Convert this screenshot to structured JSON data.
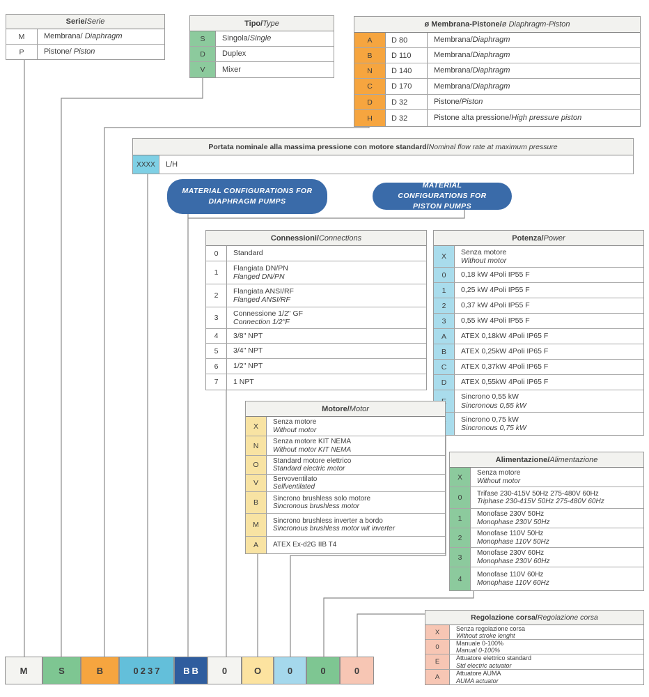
{
  "colors": {
    "green": "#8cca9d",
    "code_green": "#7ec692",
    "orange": "#f6a53f",
    "cyan": "#7fd0e5",
    "code_cyan": "#63bfda",
    "lightblue": "#a9dcec",
    "yellow": "#f8e3a3",
    "salmon": "#f7c6b4",
    "pill_blue": "#3a6ba9",
    "navy": "#2f5d9e",
    "white_cell": "#ffffff",
    "code_white": "#f4f4f1",
    "header_bg": "#f2f2ef",
    "line": "#8a8a8a",
    "text": "#3d3d3d"
  },
  "pills": [
    {
      "text": "MATERIAL CONFIGURATIONS FOR DIAPHRAGM PUMPS"
    },
    {
      "text": "MATERIAL CONFIGURATIONS FOR PISTON PUMPS"
    }
  ],
  "tables": [
    {
      "id": "serie",
      "title_it": "Serie/",
      "title_en": "Serie",
      "key_color": "white_cell",
      "rows": [
        {
          "k": "M",
          "a": "Membrana/",
          "ai": " Diaphragm"
        },
        {
          "k": "P",
          "a": "Pistone/",
          "ai": " Piston"
        }
      ]
    },
    {
      "id": "tipo",
      "title_it": "Tipo/",
      "title_en": "Type",
      "key_color": "green",
      "rows": [
        {
          "k": "S",
          "a": "Singola/",
          "ai": "Single"
        },
        {
          "k": "D",
          "a": "Duplex"
        },
        {
          "k": "V",
          "a": "Mixer"
        }
      ]
    },
    {
      "id": "diam",
      "title_it": "ø Membrana-Pistone/",
      "title_en": "ø Diaphragm-Piston",
      "key_color": "orange",
      "rows": [
        {
          "k": "A",
          "m": "D 80",
          "a": "Membrana/",
          "ai": "Diaphragm"
        },
        {
          "k": "B",
          "m": "D 110",
          "a": "Membrana/",
          "ai": "Diaphragm"
        },
        {
          "k": "N",
          "m": "D 140",
          "a": "Membrana/",
          "ai": "Diaphragm"
        },
        {
          "k": "C",
          "m": "D 170",
          "a": "Membrana/",
          "ai": "Diaphragm"
        },
        {
          "k": "D",
          "m": "D 32",
          "a": "Pistone/",
          "ai": "Piston"
        },
        {
          "k": "H",
          "m": "D 32",
          "a": "Pistone alta pressione/",
          "ai": "High pressure piston"
        }
      ]
    },
    {
      "id": "portata",
      "title_it": "Portata nominale alla massima pressione con motore standard/",
      "title_en": " Nominal flow rate at maximum pressure",
      "key_color": "cyan",
      "rows": [
        {
          "k": "XXXX",
          "a": "L/H"
        }
      ]
    },
    {
      "id": "connessioni",
      "title_it": "Connessioni/",
      "title_en": "Connections",
      "key_color": "white_cell",
      "rows": [
        {
          "k": "0",
          "a": "Standard"
        },
        {
          "k": "1",
          "a": "Flangiata DN/PN",
          "b": "Flanged DN/PN"
        },
        {
          "k": "2",
          "a": "Flangiata ANSI/RF",
          "b": "Flanged ANSI/RF"
        },
        {
          "k": "3",
          "a": "Connessione 1/2\" GF",
          "b": "Connection 1/2\"F"
        },
        {
          "k": "4",
          "a": "3/8\" NPT"
        },
        {
          "k": "5",
          "a": "3/4\" NPT"
        },
        {
          "k": "6",
          "a": "1/2\" NPT"
        },
        {
          "k": "7",
          "a": "1 NPT"
        }
      ]
    },
    {
      "id": "potenza",
      "title_it": "Potenza/",
      "title_en": "Power",
      "key_color": "lightblue",
      "rows": [
        {
          "k": "X",
          "a": "Senza motore",
          "b": "Without motor"
        },
        {
          "k": "0",
          "a": "0,18 kW 4Poli IP55 F"
        },
        {
          "k": "1",
          "a": "0,25 kW 4Poli IP55 F"
        },
        {
          "k": "2",
          "a": "0,37 kW 4Poli IP55 F"
        },
        {
          "k": "3",
          "a": "0,55 kW 4Poli IP55 F"
        },
        {
          "k": "A",
          "a": "ATEX 0,18kW 4Poli IP65 F"
        },
        {
          "k": "B",
          "a": "ATEX 0,25kW 4Poli IP65 F"
        },
        {
          "k": "C",
          "a": "ATEX 0,37kW 4Poli IP65 F"
        },
        {
          "k": "D",
          "a": "ATEX 0,55kW 4Poli IP65 F"
        },
        {
          "k": "E",
          "a": "Sincrono 0,55 kW",
          "b": "Sincronous 0,55 kW"
        },
        {
          "k": "F",
          "a": "Sincrono 0,75 kW",
          "b": "Sincronous 0,75 kW"
        }
      ]
    },
    {
      "id": "motore",
      "title_it": "Motore/",
      "title_en": "Motor",
      "key_color": "yellow",
      "rows": [
        {
          "k": "X",
          "a": "Senza motore",
          "b": "Without motor"
        },
        {
          "k": "N",
          "a": "Senza motore KIT NEMA",
          "b": "Without motor KIT NEMA"
        },
        {
          "k": "O",
          "a": "Standard motore elettrico",
          "b": "Standard electric motor"
        },
        {
          "k": "V",
          "a": "Servoventilato",
          "b": "Selfventilated"
        },
        {
          "k": "B",
          "a": "Sincrono brushless solo motore",
          "b": "Sincronous brushless motor"
        },
        {
          "k": "M",
          "a": "Sincrono brushless inverter a bordo",
          "b": "Sincronous brushless motor wit inverter"
        },
        {
          "k": "A",
          "a": "ATEX Ex-d2G IIB T4"
        }
      ]
    },
    {
      "id": "alimentazione",
      "title_it": "Alimentazione/",
      "title_en": "Alimentazione",
      "key_color": "green",
      "rows": [
        {
          "k": "X",
          "a": "Senza motore",
          "b": "Without motor"
        },
        {
          "k": "0",
          "a": "Trifase 230-415V 50Hz 275-480V 60Hz",
          "b": "Triphase 230-415V 50Hz 275-480V 60Hz"
        },
        {
          "k": "1",
          "a": "Monofase 230V 50Hz",
          "b": "Monophase 230V 50Hz"
        },
        {
          "k": "2",
          "a": "Monofase 110V 50Hz",
          "b": "Monophase 110V 50Hz"
        },
        {
          "k": "3",
          "a": "Monofase 230V 60Hz",
          "b": "Monophase 230V 60Hz"
        },
        {
          "k": "4",
          "a": "Monofase 110V 60Hz",
          "b": "Monophase 110V 60Hz"
        }
      ]
    },
    {
      "id": "regolazione",
      "title_it": "Regolazione corsa/",
      "title_en": "Regolazione corsa",
      "key_color": "salmon",
      "rows": [
        {
          "k": "X",
          "a": "Senza regolazione corsa",
          "b": "Without stroke lenght"
        },
        {
          "k": "0",
          "a": "Manuale 0-100%",
          "b": "Manual 0-100%"
        },
        {
          "k": "E",
          "a": "Attuatore elettrico standard",
          "b": "Std electric actuator"
        },
        {
          "k": "A",
          "a": "Attuatore AUMA",
          "b": "AUMA actuator"
        }
      ]
    }
  ],
  "code_row": [
    {
      "label": "M",
      "bg": "#f4f4f1",
      "fg": "#3d3d3d",
      "section": "serie"
    },
    {
      "label": "S",
      "bg": "#7ec692",
      "fg": "#3d3d3d",
      "section": "tipo"
    },
    {
      "label": "B",
      "bg": "#f6a53f",
      "fg": "#3d3d3d",
      "section": "diametro"
    },
    {
      "label": "0237",
      "bg": "#63bfda",
      "fg": "#3d3d3d",
      "section": "portata"
    },
    {
      "label": "BB",
      "bg": "#2f5d9e",
      "fg": "#ffffff",
      "section": "materiali"
    },
    {
      "label": "0",
      "bg": "#f4f4f1",
      "fg": "#3d3d3d",
      "section": "connessioni"
    },
    {
      "label": "O",
      "bg": "#fce3a0",
      "fg": "#3d3d3d",
      "section": "motore"
    },
    {
      "label": "0",
      "bg": "#a5d8ec",
      "fg": "#3d3d3d",
      "section": "potenza"
    },
    {
      "label": "0",
      "bg": "#7ec692",
      "fg": "#3d3d3d",
      "section": "alimentazione"
    },
    {
      "label": "0",
      "bg": "#f7c6b4",
      "fg": "#3d3d3d",
      "section": "regolazione"
    }
  ]
}
